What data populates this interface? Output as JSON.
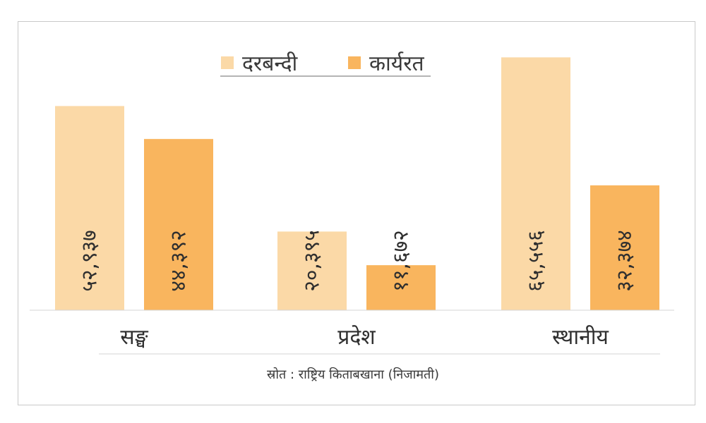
{
  "chart_data": {
    "type": "bar",
    "categories": [
      "सङ्घ",
      "प्रदेश",
      "स्थानीय"
    ],
    "series": [
      {
        "name": "दरबन्दी",
        "values": [
          52937,
          20395,
          65556
        ],
        "labels": [
          "५२,९३७",
          "२०,३९५",
          "६५,५५६"
        ],
        "color": "#fbd9a7"
      },
      {
        "name": "कार्यरत",
        "values": [
          44392,
          11672,
          32374
        ],
        "labels": [
          "४४,३९२",
          "११,६७२",
          "३२,३७४"
        ],
        "color": "#f9b55e"
      }
    ],
    "ylim": [
      0,
      68000
    ],
    "grid": false,
    "legend_position": "top-center",
    "title": "",
    "xlabel": "",
    "ylabel": "",
    "source": "स्रोत : राष्ट्रिय किताबखाना (निजामती)"
  }
}
